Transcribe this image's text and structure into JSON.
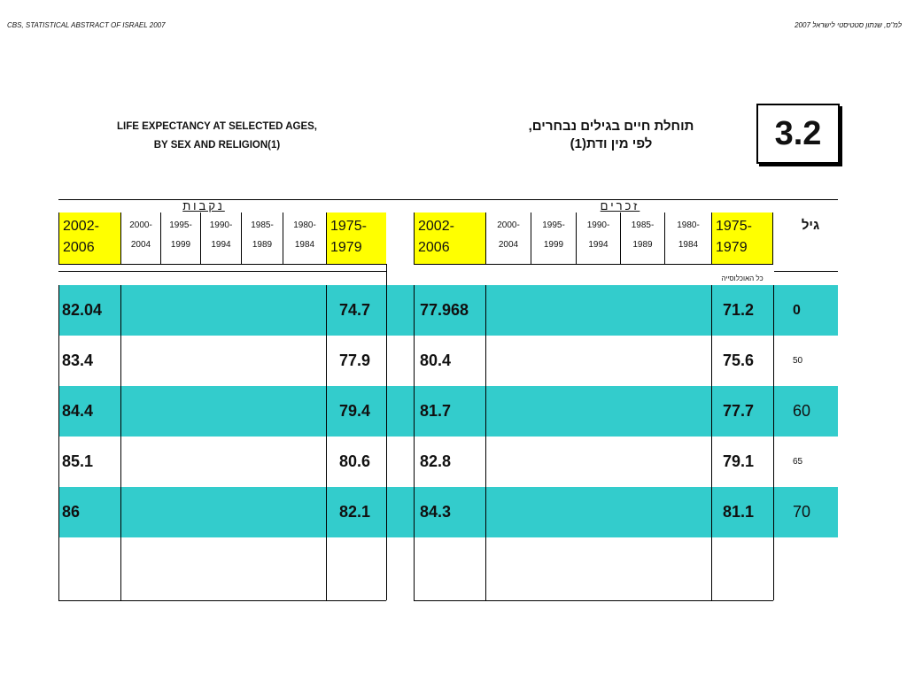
{
  "header": {
    "left": "CBS, STATISTICAL ABSTRACT OF ISRAEL 2007",
    "right": "למ\"ס, שנתון סטטיסטי לישראל 2007"
  },
  "title": {
    "en_line1": "LIFE EXPECTANCY AT SELECTED AGES,",
    "en_line2": "BY SEX AND RELIGION(1)",
    "he_line1": "תוחלת חיים בגילים נבחרים,",
    "he_line2": "לפי מין ודת(1)",
    "table_number": "3.2"
  },
  "groups": {
    "females": "נקבות",
    "males": "זכרים",
    "age": "גיל",
    "population_label": "כל האוכלוסייה"
  },
  "period_headers": [
    {
      "top": "2002-",
      "bottom": "2006"
    },
    {
      "top": "2000-",
      "bottom": "2004"
    },
    {
      "top": "1995-",
      "bottom": "1999"
    },
    {
      "top": "1990-",
      "bottom": "1994"
    },
    {
      "top": "1985-",
      "bottom": "1989"
    },
    {
      "top": "1980-",
      "bottom": "1984"
    },
    {
      "top": "1975-",
      "bottom": "1979"
    }
  ],
  "rows": [
    {
      "age": "0",
      "female_2002_2006": "82.04",
      "female_1975_1979": "74.7",
      "male_2002_2006": "77.968",
      "male_1975_1979": "71.2",
      "teal": true
    },
    {
      "age": "50",
      "female_2002_2006": "83.4",
      "female_1975_1979": "77.9",
      "male_2002_2006": "80.4",
      "male_1975_1979": "75.6",
      "teal": false
    },
    {
      "age": "60",
      "female_2002_2006": "84.4",
      "female_1975_1979": "79.4",
      "male_2002_2006": "81.7",
      "male_1975_1979": "77.7",
      "teal": true
    },
    {
      "age": "65",
      "female_2002_2006": "85.1",
      "female_1975_1979": "80.6",
      "male_2002_2006": "82.8",
      "male_1975_1979": "79.1",
      "teal": false
    },
    {
      "age": "70",
      "female_2002_2006": "86",
      "female_1975_1979": "82.1",
      "male_2002_2006": "84.3",
      "male_1975_1979": "81.1",
      "teal": true
    }
  ],
  "colors": {
    "highlight": "#ffff00",
    "row_band": "#33cccc"
  }
}
